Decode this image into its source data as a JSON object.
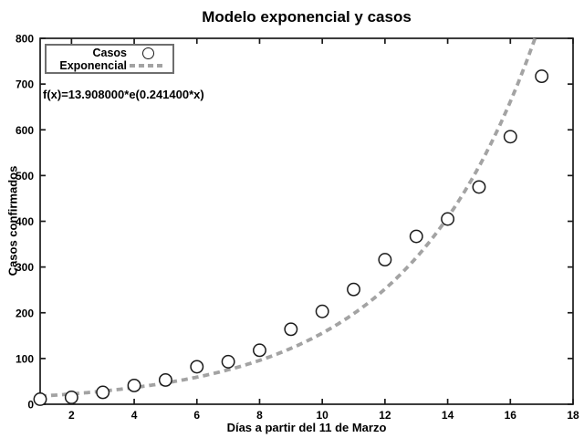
{
  "figure": {
    "title": "Modelo exponencial y casos",
    "annotation": "f(x)=13.908000*e(0.241400*x)"
  },
  "legend": {
    "items": [
      {
        "label": "Casos",
        "marker": "circle-icon"
      },
      {
        "label": "Exponencial",
        "marker": "dashed-line-icon"
      }
    ]
  },
  "axes": {
    "x": {
      "label": "Días a partir del 11 de Marzo",
      "min": 1,
      "max": 18,
      "ticks": [
        2,
        4,
        6,
        8,
        10,
        12,
        14,
        16,
        18
      ]
    },
    "y": {
      "label": "Casos confirmados",
      "min": 0,
      "max": 800,
      "ticks": [
        0,
        100,
        200,
        300,
        400,
        500,
        600,
        700,
        800
      ]
    }
  },
  "chart_data": {
    "type": "scatter",
    "title": "Modelo exponencial y casos",
    "xlabel": "Días a partir del 11 de Marzo",
    "ylabel": "Casos confirmados",
    "xlim": [
      1,
      18
    ],
    "ylim": [
      0,
      800
    ],
    "grid": false,
    "legend_position": "top-left-inside",
    "series": [
      {
        "name": "Casos",
        "type": "scatter",
        "marker": "open-circle",
        "x": [
          1,
          2,
          3,
          4,
          5,
          6,
          7,
          8,
          9,
          10,
          11,
          12,
          13,
          14,
          15,
          16,
          17
        ],
        "y": [
          11,
          15,
          26,
          41,
          53,
          82,
          93,
          118,
          164,
          203,
          251,
          316,
          367,
          405,
          475,
          585,
          717
        ]
      },
      {
        "name": "Exponencial",
        "type": "line",
        "style": "dashed",
        "fit": {
          "a": 13.908,
          "b": 0.2414,
          "formula": "f(x)=13.908000*e(0.241400*x)"
        }
      }
    ]
  },
  "colors": {
    "background": "#ffffff",
    "axis": "#1a1a1a",
    "marker": "#1a1a1a",
    "fit_line": "#a3a3a3",
    "legend_border": "#6e6e6e"
  }
}
